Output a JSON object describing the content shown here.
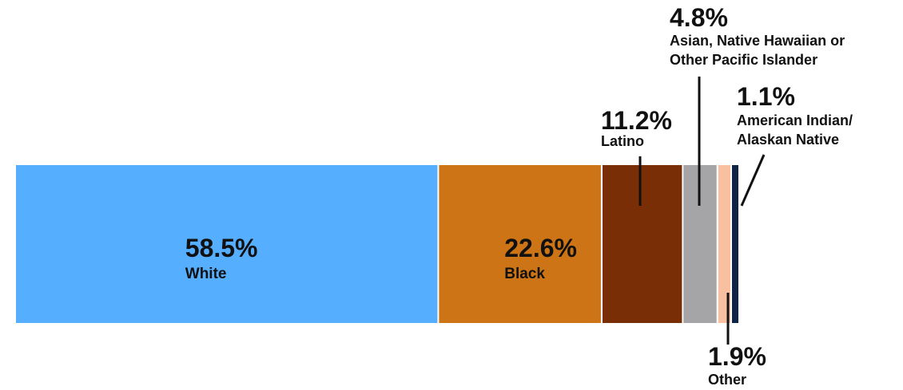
{
  "chart_data": {
    "type": "bar",
    "orientation": "horizontal",
    "stacked": true,
    "title": "",
    "xlabel": "",
    "ylabel": "",
    "xlim": [
      0,
      100
    ],
    "grid": false,
    "legend": "none",
    "segments": [
      {
        "name": "White",
        "value": 58.5,
        "value_label": "58.5%",
        "color": "#56AEFF",
        "label_lines": [
          "White"
        ],
        "label_position": "inside"
      },
      {
        "name": "Black",
        "value": 22.6,
        "value_label": "22.6%",
        "color": "#CC7416",
        "label_lines": [
          "Black"
        ],
        "label_position": "inside"
      },
      {
        "name": "Latino",
        "value": 11.2,
        "value_label": "11.2%",
        "color": "#7A2E06",
        "label_lines": [
          "Latino"
        ],
        "label_position": "above"
      },
      {
        "name": "Asian, Native Hawaiian or Other Pacific Islander",
        "value": 4.8,
        "value_label": "4.8%",
        "color": "#A5A5A8",
        "label_lines": [
          "Asian, Native Hawaiian or",
          "Other Pacific Islander"
        ],
        "label_position": "above"
      },
      {
        "name": "Other",
        "value": 1.9,
        "value_label": "1.9%",
        "color": "#F8C0A0",
        "label_lines": [
          "Other"
        ],
        "label_position": "below"
      },
      {
        "name": "American Indian/ Alaskan Native",
        "value": 1.1,
        "value_label": "1.1%",
        "color": "#0E2345",
        "label_lines": [
          "American Indian/",
          "Alaskan Native"
        ],
        "label_position": "above"
      }
    ]
  }
}
